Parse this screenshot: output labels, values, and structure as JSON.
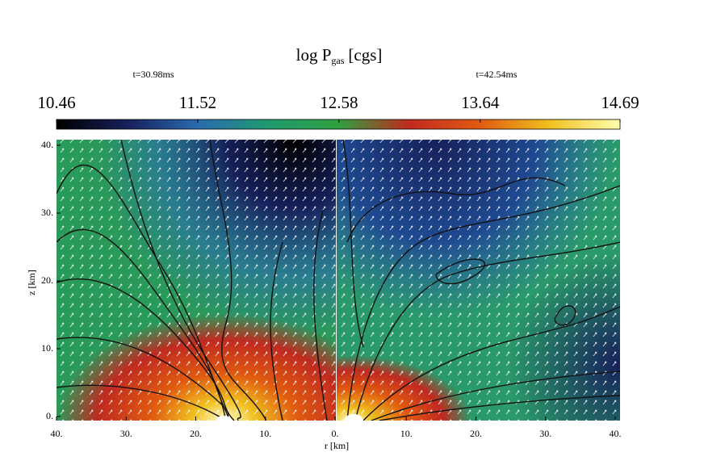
{
  "chart_data": {
    "type": "heatmap",
    "title": "log P",
    "title_subscript": "gas",
    "title_units": "[cgs]",
    "colorbar": {
      "lim": [
        10.46,
        14.69
      ],
      "ticks": [
        10.46,
        11.52,
        12.58,
        13.64,
        14.69
      ],
      "colors": [
        "#000000",
        "#16205a",
        "#2a6ab0",
        "#1f9a70",
        "#2ea040",
        "#c02a20",
        "#e05a10",
        "#f0c020",
        "#ffffb0"
      ]
    },
    "ylabel": "z [km]",
    "xlabel": "r [km]",
    "ylim": [
      0,
      40
    ],
    "yticks": [
      {
        "value": 0,
        "label": "0."
      },
      {
        "value": 10,
        "label": "10."
      },
      {
        "value": 20,
        "label": "20."
      },
      {
        "value": 30,
        "label": "30."
      },
      {
        "value": 40,
        "label": "40."
      }
    ],
    "panels": [
      {
        "subtitle": "t=30.98ms",
        "xlim": [
          40,
          0
        ],
        "xticks": [
          {
            "value": 40,
            "label": "40."
          },
          {
            "value": 30,
            "label": "30."
          },
          {
            "value": 20,
            "label": "20."
          },
          {
            "value": 10,
            "label": "10."
          },
          {
            "value": 0,
            "label": "0."
          }
        ]
      },
      {
        "subtitle": "t=42.54ms",
        "xlim": [
          0,
          40
        ],
        "xticks": [
          {
            "value": 10,
            "label": "10."
          },
          {
            "value": 20,
            "label": "20."
          },
          {
            "value": 30,
            "label": "30."
          },
          {
            "value": 40,
            "label": "40."
          }
        ]
      }
    ]
  }
}
